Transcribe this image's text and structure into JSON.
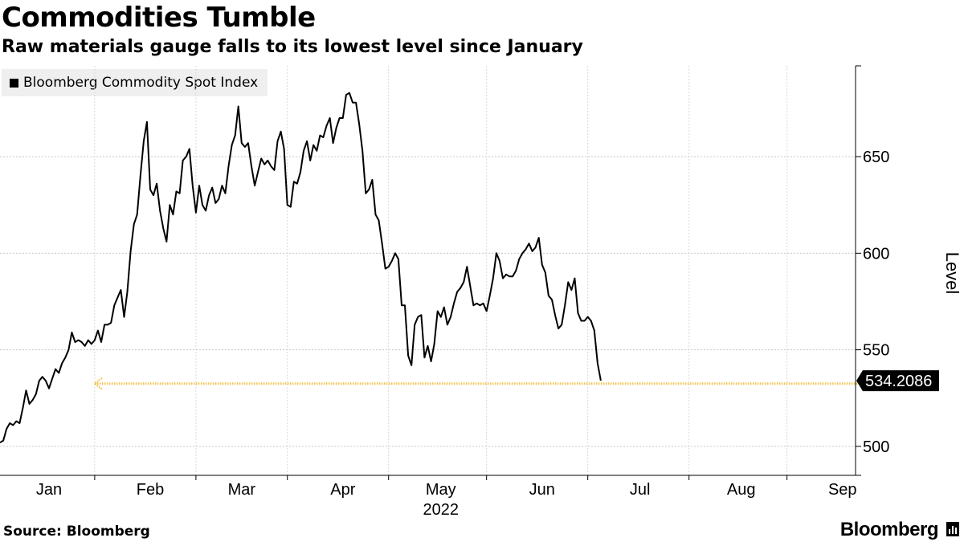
{
  "header": {
    "title": "Commodities Tumble",
    "subtitle": "Raw materials gauge falls to its lowest level since January"
  },
  "footer": {
    "source": "Source: Bloomberg",
    "brand": "Bloomberg"
  },
  "colors": {
    "line": "#000000",
    "grid": "#c8c8c8",
    "reference": "#f3c44f",
    "label_bg": "#000000"
  },
  "chart_data": {
    "type": "line",
    "title": "Commodities Tumble",
    "subtitle": "Raw materials gauge falls to its lowest level since January",
    "legend": [
      "Bloomberg Commodity Spot Index"
    ],
    "legend_position": "top-left",
    "ylabel": "Level",
    "xlabel": "2022",
    "ylim": [
      485,
      697
    ],
    "xlim": [
      0,
      262
    ],
    "y_ticks": [
      500,
      550,
      600,
      650
    ],
    "x_ticks": [
      {
        "label": "Jan",
        "pos": 15
      },
      {
        "label": "Feb",
        "pos": 46
      },
      {
        "label": "Mar",
        "pos": 74
      },
      {
        "label": "Apr",
        "pos": 105
      },
      {
        "label": "May",
        "pos": 135
      },
      {
        "label": "Jun",
        "pos": 166
      },
      {
        "label": "Jul",
        "pos": 196
      },
      {
        "label": "Aug",
        "pos": 227
      },
      {
        "label": "Sep",
        "pos": 258
      }
    ],
    "x_year_label": "2022",
    "last_value_label": "534.2086",
    "reference_line": {
      "value": 532.5,
      "from_x": 29,
      "to_x": 263
    },
    "series": [
      {
        "name": "Bloomberg Commodity Spot Index",
        "points": [
          [
            0,
            502
          ],
          [
            1,
            503
          ],
          [
            2,
            509
          ],
          [
            3,
            512
          ],
          [
            4,
            511
          ],
          [
            5,
            513
          ],
          [
            6,
            512
          ],
          [
            7,
            520
          ],
          [
            8,
            529
          ],
          [
            9,
            522
          ],
          [
            10,
            524
          ],
          [
            11,
            527
          ],
          [
            12,
            534
          ],
          [
            13,
            536
          ],
          [
            14,
            534
          ],
          [
            15,
            530
          ],
          [
            16,
            535
          ],
          [
            17,
            540
          ],
          [
            18,
            538
          ],
          [
            19,
            543
          ],
          [
            20,
            546
          ],
          [
            21,
            550
          ],
          [
            22,
            559
          ],
          [
            23,
            554
          ],
          [
            24,
            555
          ],
          [
            25,
            554
          ],
          [
            26,
            552
          ],
          [
            27,
            555
          ],
          [
            28,
            553
          ],
          [
            29,
            555
          ],
          [
            30,
            560
          ],
          [
            31,
            554
          ],
          [
            32,
            563
          ],
          [
            33,
            563
          ],
          [
            34,
            564
          ],
          [
            35,
            573
          ],
          [
            36,
            577
          ],
          [
            37,
            581
          ],
          [
            38,
            567
          ],
          [
            39,
            580
          ],
          [
            40,
            601
          ],
          [
            41,
            615
          ],
          [
            42,
            620
          ],
          [
            43,
            640
          ],
          [
            44,
            658
          ],
          [
            45,
            668
          ],
          [
            46,
            633
          ],
          [
            47,
            630
          ],
          [
            48,
            636
          ],
          [
            49,
            622
          ],
          [
            50,
            613
          ],
          [
            51,
            606
          ],
          [
            52,
            625
          ],
          [
            53,
            620
          ],
          [
            54,
            632
          ],
          [
            55,
            631
          ],
          [
            56,
            648
          ],
          [
            57,
            650
          ],
          [
            58,
            654
          ],
          [
            59,
            635
          ],
          [
            60,
            621
          ],
          [
            61,
            635
          ],
          [
            62,
            625
          ],
          [
            63,
            622
          ],
          [
            64,
            630
          ],
          [
            65,
            634
          ],
          [
            66,
            626
          ],
          [
            67,
            628
          ],
          [
            68,
            635
          ],
          [
            69,
            631
          ],
          [
            70,
            645
          ],
          [
            71,
            656
          ],
          [
            72,
            661
          ],
          [
            73,
            676
          ],
          [
            74,
            657
          ],
          [
            75,
            655
          ],
          [
            76,
            657
          ],
          [
            77,
            645
          ],
          [
            78,
            635
          ],
          [
            79,
            642
          ],
          [
            80,
            649
          ],
          [
            81,
            646
          ],
          [
            82,
            648
          ],
          [
            83,
            645
          ],
          [
            84,
            643
          ],
          [
            85,
            658
          ],
          [
            86,
            663
          ],
          [
            87,
            654
          ],
          [
            88,
            625
          ],
          [
            89,
            624
          ],
          [
            90,
            637
          ],
          [
            91,
            636
          ],
          [
            92,
            642
          ],
          [
            93,
            653
          ],
          [
            94,
            658
          ],
          [
            95,
            648
          ],
          [
            96,
            656
          ],
          [
            97,
            653
          ],
          [
            98,
            661
          ],
          [
            99,
            660
          ],
          [
            100,
            666
          ],
          [
            101,
            670
          ],
          [
            102,
            657
          ],
          [
            103,
            665
          ],
          [
            104,
            670
          ],
          [
            105,
            670
          ],
          [
            106,
            682
          ],
          [
            107,
            683
          ],
          [
            108,
            678
          ],
          [
            109,
            678
          ],
          [
            110,
            667
          ],
          [
            111,
            653
          ],
          [
            112,
            631
          ],
          [
            113,
            633
          ],
          [
            114,
            638
          ],
          [
            115,
            620
          ],
          [
            116,
            617
          ],
          [
            117,
            605
          ],
          [
            118,
            592
          ],
          [
            119,
            593
          ],
          [
            120,
            596
          ],
          [
            121,
            600
          ],
          [
            122,
            597
          ],
          [
            123,
            573
          ],
          [
            124,
            573
          ],
          [
            125,
            547
          ],
          [
            126,
            542
          ],
          [
            127,
            563
          ],
          [
            128,
            567
          ],
          [
            129,
            568
          ],
          [
            130,
            546
          ],
          [
            131,
            552
          ],
          [
            132,
            544
          ],
          [
            133,
            553
          ],
          [
            134,
            570
          ],
          [
            135,
            567
          ],
          [
            136,
            572
          ],
          [
            137,
            563
          ],
          [
            138,
            567
          ],
          [
            139,
            574
          ],
          [
            140,
            580
          ],
          [
            141,
            582
          ],
          [
            142,
            585
          ],
          [
            143,
            593
          ],
          [
            144,
            583
          ],
          [
            145,
            573
          ],
          [
            146,
            574
          ],
          [
            147,
            573
          ],
          [
            148,
            574
          ],
          [
            149,
            570
          ],
          [
            150,
            578
          ],
          [
            151,
            587
          ],
          [
            152,
            600
          ],
          [
            153,
            596
          ],
          [
            154,
            587
          ],
          [
            155,
            589
          ],
          [
            156,
            588
          ],
          [
            157,
            588
          ],
          [
            158,
            591
          ],
          [
            159,
            597
          ],
          [
            160,
            600
          ],
          [
            161,
            602
          ],
          [
            162,
            605
          ],
          [
            163,
            601
          ],
          [
            164,
            603
          ],
          [
            165,
            608
          ],
          [
            166,
            594
          ],
          [
            167,
            590
          ],
          [
            168,
            578
          ],
          [
            169,
            576
          ],
          [
            170,
            568
          ],
          [
            171,
            561
          ],
          [
            172,
            563
          ],
          [
            173,
            573
          ],
          [
            174,
            585
          ],
          [
            175,
            581
          ],
          [
            176,
            587
          ],
          [
            177,
            569
          ],
          [
            178,
            565
          ],
          [
            179,
            565
          ],
          [
            180,
            567
          ],
          [
            181,
            565
          ],
          [
            182,
            560
          ],
          [
            183,
            543
          ],
          [
            184,
            534
          ]
        ]
      }
    ]
  }
}
